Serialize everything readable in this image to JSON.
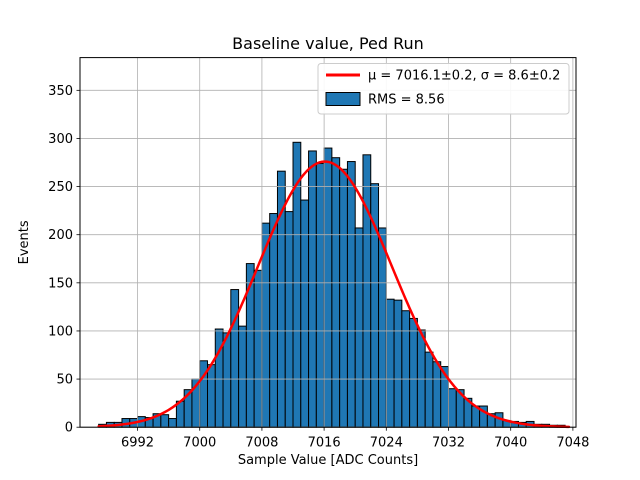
{
  "chart_data": {
    "type": "bar",
    "subtype": "histogram-with-gaussian-fit",
    "title": "Baseline value, Ped Run",
    "xlabel": "Sample Value [ADC Counts]",
    "ylabel": "Events",
    "bin_start": 6987,
    "bin_width": 1,
    "counts": [
      3,
      5,
      5,
      9,
      9,
      11,
      10,
      14,
      13,
      9,
      27,
      39,
      50,
      69,
      65,
      102,
      98,
      143,
      105,
      170,
      163,
      212,
      222,
      266,
      224,
      296,
      236,
      287,
      274,
      290,
      280,
      268,
      276,
      207,
      283,
      253,
      207,
      133,
      132,
      121,
      113,
      101,
      78,
      68,
      63,
      40,
      39,
      30,
      22,
      22,
      14,
      15,
      7,
      6,
      5,
      6,
      3,
      3,
      2,
      2
    ],
    "x_ticks": [
      6992,
      7000,
      7008,
      7016,
      7024,
      7032,
      7040,
      7048
    ],
    "y_ticks": [
      0,
      50,
      100,
      150,
      200,
      250,
      300,
      350
    ],
    "xlim": [
      6984.6,
      7048.4
    ],
    "ylim": [
      0,
      384
    ],
    "grid": true,
    "fit_curve": {
      "shape": "gaussian",
      "mu": 7016.1,
      "sigma": 8.6,
      "amplitude": 276,
      "x_start": 6987,
      "x_end": 7047.5
    },
    "legend": {
      "position": "upper right",
      "entries": [
        {
          "label": "μ = 7016.1±0.2, σ = 8.6±0.2",
          "swatch": "line",
          "color": "#ff0000"
        },
        {
          "label": "RMS = 8.56",
          "swatch": "patch",
          "color": "#1f77b4"
        }
      ]
    },
    "colors": {
      "bar_fill": "#1f77b4",
      "bar_edge": "#000000",
      "fit_line": "#ff0000",
      "grid": "#b0b0b0",
      "spine": "#000000",
      "legend_border": "#cccccc",
      "background": "#ffffff"
    }
  }
}
